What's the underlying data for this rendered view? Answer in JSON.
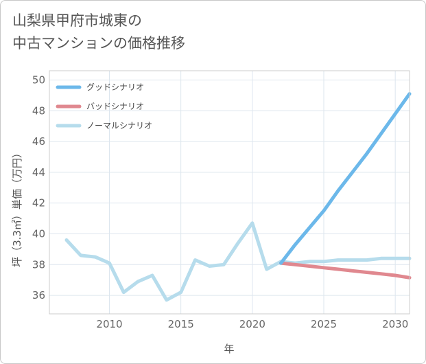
{
  "title": {
    "line1": "山梨県甲府市城東の",
    "line2": "中古マンションの価格推移"
  },
  "chart_data": {
    "type": "line",
    "xlabel": "年",
    "ylabel": "坪（3.3㎡）単価（万円）",
    "xlim": [
      2005.8,
      2031
    ],
    "ylim": [
      34.8,
      50.6
    ],
    "xticks": [
      2010,
      2015,
      2020,
      2025,
      2030
    ],
    "yticks": [
      36,
      38,
      40,
      42,
      44,
      46,
      48,
      50
    ],
    "grid": true,
    "legend_position": "top-left",
    "series": [
      {
        "name": "グッドシナリオ",
        "color": "#6cb8ea",
        "x": [
          2022,
          2023,
          2024,
          2025,
          2026,
          2027,
          2028,
          2029,
          2030,
          2031
        ],
        "y": [
          38.1,
          39.3,
          40.4,
          41.5,
          42.8,
          44.0,
          45.2,
          46.5,
          47.8,
          49.1
        ]
      },
      {
        "name": "バッドシナリオ",
        "color": "#e0888f",
        "x": [
          2022,
          2023,
          2024,
          2025,
          2026,
          2027,
          2028,
          2029,
          2030,
          2031
        ],
        "y": [
          38.1,
          38.0,
          37.9,
          37.8,
          37.7,
          37.6,
          37.5,
          37.4,
          37.3,
          37.15
        ]
      },
      {
        "name": "ノーマルシナリオ",
        "color": "#b6dcec",
        "x": [
          2007,
          2008,
          2009,
          2010,
          2011,
          2012,
          2013,
          2014,
          2015,
          2016,
          2017,
          2018,
          2019,
          2020,
          2021,
          2022,
          2023,
          2024,
          2025,
          2026,
          2027,
          2028,
          2029,
          2030,
          2031
        ],
        "y": [
          39.6,
          38.6,
          38.5,
          38.1,
          36.2,
          36.9,
          37.3,
          35.7,
          36.2,
          38.3,
          37.9,
          38.0,
          39.4,
          40.7,
          37.7,
          38.2,
          38.1,
          38.2,
          38.2,
          38.3,
          38.3,
          38.3,
          38.4,
          38.4,
          38.4
        ]
      }
    ]
  }
}
